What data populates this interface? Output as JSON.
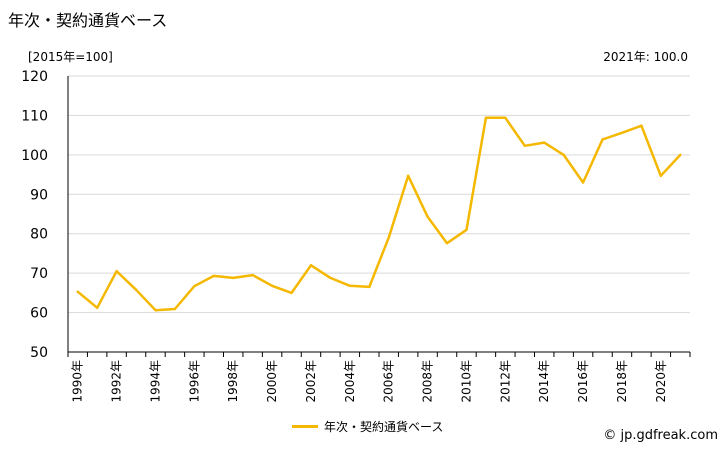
{
  "title": "年次・契約通貨ベース",
  "unit_label": "[2015年=100]",
  "latest_label": "2021年: 100.0",
  "credit": "© jp.gdfreak.com",
  "colors": {
    "line": "#f5b800",
    "grid": "#d9d9d9",
    "axis": "#000000"
  },
  "chart_data": {
    "type": "line",
    "title": "年次・契約通貨ベース",
    "ylim": [
      50,
      120
    ],
    "yticks": [
      50,
      60,
      70,
      80,
      90,
      100,
      110,
      120
    ],
    "x": [
      1990,
      1991,
      1992,
      1993,
      1994,
      1995,
      1996,
      1997,
      1998,
      1999,
      2000,
      2001,
      2002,
      2003,
      2004,
      2005,
      2006,
      2007,
      2008,
      2009,
      2010,
      2011,
      2012,
      2013,
      2014,
      2015,
      2016,
      2017,
      2018,
      2019,
      2020,
      2021
    ],
    "xtick_labels": [
      "1990年",
      "1992年",
      "1994年",
      "1996年",
      "1998年",
      "2000年",
      "2002年",
      "2004年",
      "2006年",
      "2008年",
      "2010年",
      "2012年",
      "2014年",
      "2016年",
      "2018年",
      "2020年"
    ],
    "series": [
      {
        "name": "年次・契約通貨ベース",
        "values": [
          65.3,
          61.2,
          70.5,
          65.8,
          60.6,
          60.9,
          66.7,
          69.3,
          68.8,
          69.5,
          66.8,
          65.0,
          72.0,
          68.8,
          66.8,
          66.5,
          79.0,
          94.7,
          84.3,
          77.6,
          81.0,
          109.4,
          109.4,
          102.3,
          103.1,
          100.0,
          93.0,
          103.9,
          105.6,
          107.4,
          94.7,
          100.0
        ]
      }
    ],
    "grid": true,
    "legend": "bottom-center"
  }
}
